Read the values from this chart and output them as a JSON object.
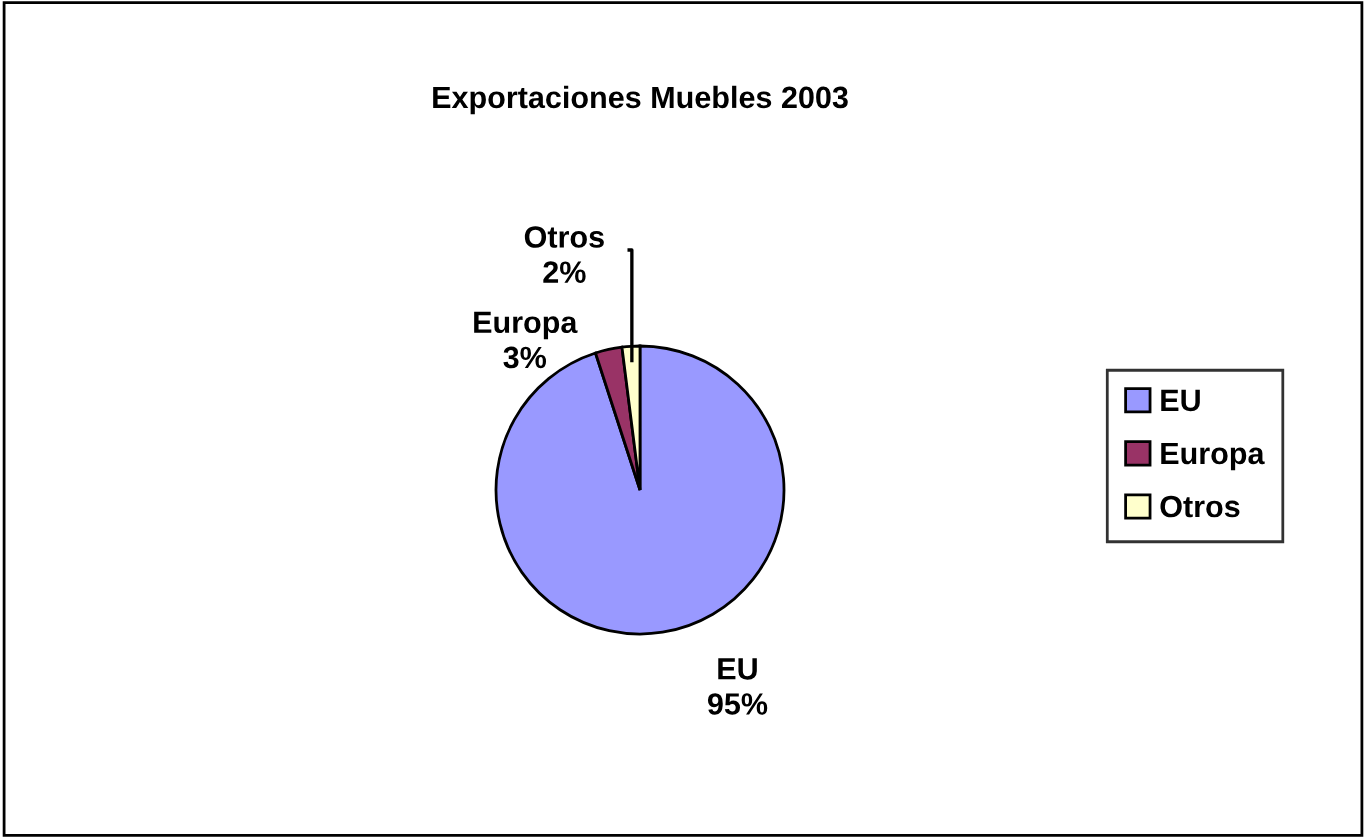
{
  "chart_data": {
    "type": "pie",
    "title": "Exportaciones Muebles 2003",
    "categories": [
      "EU",
      "Europa",
      "Otros"
    ],
    "values": [
      95,
      3,
      2
    ],
    "colors": [
      "#9999ff",
      "#993366",
      "#ffffcc"
    ],
    "value_labels": [
      "95%",
      "3%",
      "2%"
    ],
    "legend": "right"
  }
}
